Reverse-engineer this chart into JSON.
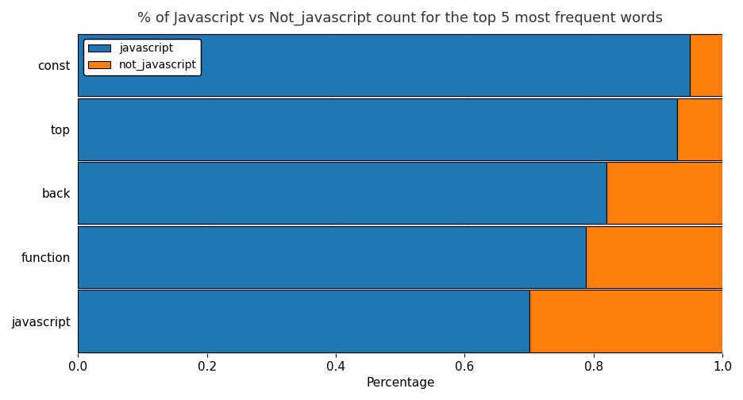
{
  "categories": [
    "javascript",
    "function",
    "back",
    "top",
    "const"
  ],
  "javascript": [
    0.7,
    0.788,
    0.82,
    0.93,
    0.95
  ],
  "not_javascript": [
    0.3,
    0.212,
    0.18,
    0.07,
    0.05
  ],
  "javascript_color": "#1f77b4",
  "not_javascript_color": "#ff7f0e",
  "title": "% of Javascript vs Not_javascript count for the top 5 most frequent words",
  "xlabel": "Percentage",
  "ylabel": "",
  "xlim": [
    0.0,
    1.0
  ],
  "legend_labels": [
    "javascript",
    "not_javascript"
  ],
  "background_color": "#eaeaf2",
  "grid_color": "#ffffff",
  "title_fontsize": 13,
  "label_fontsize": 11,
  "tick_fontsize": 11
}
